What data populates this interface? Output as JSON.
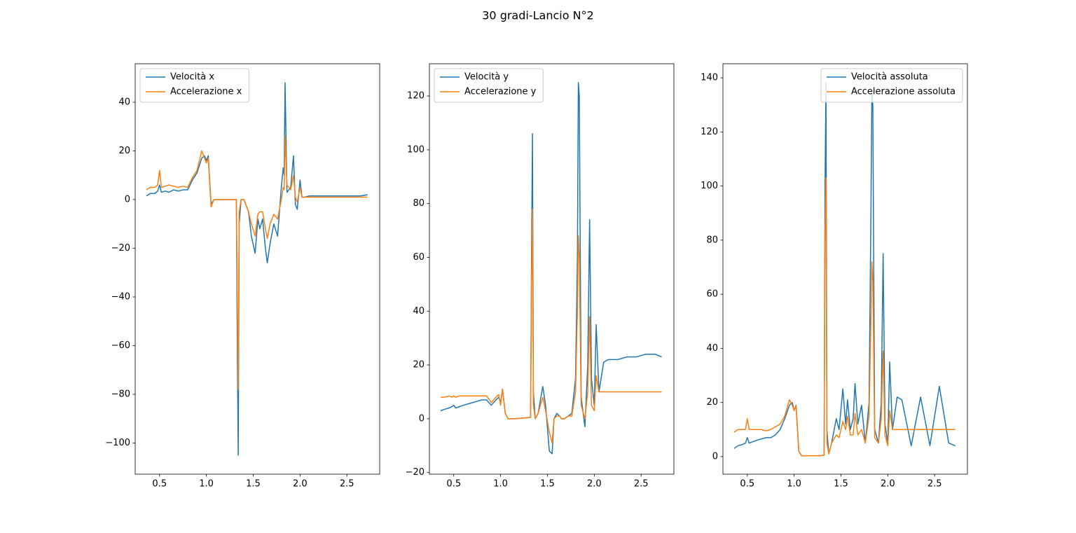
{
  "title": "30 gradi-Lancio N°2",
  "chart_data": [
    {
      "type": "line",
      "legend": "upper left",
      "x": [
        0.36,
        0.4,
        0.45,
        0.48,
        0.5,
        0.52,
        0.56,
        0.6,
        0.65,
        0.7,
        0.75,
        0.8,
        0.85,
        0.9,
        0.95,
        0.98,
        1.0,
        1.02,
        1.05,
        1.08,
        1.15,
        1.25,
        1.32,
        1.33,
        1.34,
        1.35,
        1.37,
        1.4,
        1.45,
        1.48,
        1.52,
        1.55,
        1.57,
        1.6,
        1.63,
        1.65,
        1.68,
        1.72,
        1.76,
        1.8,
        1.82,
        1.83,
        1.84,
        1.86,
        1.9,
        1.93,
        1.95,
        1.97,
        2.0,
        2.02,
        2.05,
        2.1,
        2.15,
        2.25,
        2.35,
        2.45,
        2.55,
        2.65,
        2.72
      ],
      "series": [
        {
          "name": "Velocità x",
          "color": "#1f77b4",
          "values": [
            1.5,
            2.5,
            2.5,
            3.5,
            6,
            3,
            3.5,
            3,
            4,
            3.5,
            4,
            4,
            8,
            11,
            17,
            18,
            16,
            18,
            -2,
            0,
            0,
            0,
            0,
            -60,
            -105,
            -10,
            0,
            0,
            -5,
            -15,
            -22,
            -8,
            -12,
            -8,
            -20,
            -26,
            -18,
            -10,
            -15,
            5,
            13,
            10,
            48,
            3,
            5,
            18,
            -2,
            -4,
            8,
            1,
            1,
            1.5,
            1.5,
            1.5,
            1.5,
            1.5,
            1.5,
            1.5,
            2
          ]
        },
        {
          "name": "Accelerazione x",
          "color": "#ff7f0e",
          "values": [
            4,
            5,
            5,
            6,
            12,
            5,
            5.5,
            6,
            5.5,
            5,
            5.5,
            5,
            9,
            12,
            20,
            17,
            15,
            17,
            -3,
            0,
            0,
            0,
            0,
            -40,
            -78,
            -5,
            0,
            0,
            -5,
            -10,
            -15,
            -6,
            -5,
            -5,
            -12,
            -16,
            -10,
            -6,
            -8,
            0,
            5,
            4,
            26,
            6,
            4,
            10,
            1,
            -1,
            5,
            1,
            1,
            1,
            1,
            1,
            1,
            1,
            1,
            1,
            1
          ]
        }
      ],
      "xlim": [
        0.24,
        2.85
      ],
      "xticks": [
        0.5,
        {
          "value": 1,
          "label": "1.0"
        },
        1.5,
        {
          "value": 2,
          "label": "2.0"
        },
        2.5
      ],
      "ylim": [
        -112.8,
        55.8
      ],
      "yticks": [
        {
          "value": -100,
          "label": "−100"
        },
        {
          "value": -80,
          "label": "−80"
        },
        {
          "value": -60,
          "label": "−60"
        },
        {
          "value": -40,
          "label": "−40"
        },
        {
          "value": -20,
          "label": "−20"
        },
        0,
        20,
        40
      ]
    },
    {
      "type": "line",
      "legend": "upper left",
      "x": [
        0.36,
        0.4,
        0.45,
        0.48,
        0.5,
        0.52,
        0.56,
        0.6,
        0.65,
        0.7,
        0.75,
        0.8,
        0.85,
        0.9,
        0.95,
        0.98,
        1.0,
        1.02,
        1.05,
        1.08,
        1.15,
        1.25,
        1.32,
        1.33,
        1.34,
        1.35,
        1.37,
        1.4,
        1.45,
        1.48,
        1.52,
        1.55,
        1.57,
        1.6,
        1.63,
        1.65,
        1.68,
        1.72,
        1.76,
        1.8,
        1.82,
        1.83,
        1.84,
        1.86,
        1.9,
        1.93,
        1.95,
        1.97,
        2.0,
        2.02,
        2.05,
        2.1,
        2.15,
        2.25,
        2.35,
        2.45,
        2.55,
        2.65,
        2.72
      ],
      "series": [
        {
          "name": "Velocità y",
          "color": "#1f77b4",
          "values": [
            3,
            3.5,
            4,
            4.5,
            5,
            4,
            4.5,
            5,
            5.5,
            6,
            6.5,
            7,
            7,
            5,
            7,
            8,
            6,
            11,
            2,
            0,
            0,
            0.3,
            0.5,
            60,
            106,
            10,
            0,
            2,
            12,
            5,
            -12,
            -13,
            0,
            2,
            1,
            0,
            0,
            1,
            2,
            15,
            60,
            125,
            120,
            8,
            -3,
            20,
            74,
            15,
            5,
            35,
            10,
            21,
            22,
            22,
            23,
            23,
            24,
            24,
            23
          ]
        },
        {
          "name": "Accelerazione y",
          "color": "#ff7f0e",
          "values": [
            8,
            8,
            8.5,
            8,
            8.5,
            8,
            8.5,
            8.5,
            8.5,
            8.5,
            8.5,
            8.5,
            8.5,
            6,
            8,
            9,
            5,
            11,
            2,
            0,
            0,
            0.3,
            0.5,
            50,
            78,
            5,
            0,
            2,
            8,
            3,
            -5,
            -9,
            0,
            1,
            1,
            0,
            0,
            1,
            1,
            10,
            40,
            68,
            60,
            5,
            0,
            10,
            38,
            5,
            3,
            16,
            10,
            10,
            10,
            10,
            10,
            10,
            10,
            10,
            10
          ]
        }
      ],
      "xlim": [
        0.24,
        2.85
      ],
      "xticks": [
        0.5,
        {
          "value": 1,
          "label": "1.0"
        },
        1.5,
        {
          "value": 2,
          "label": "2.0"
        },
        2.5
      ],
      "ylim": [
        -20.6,
        132
      ],
      "yticks": [
        {
          "value": -20,
          "label": "−20"
        },
        0,
        20,
        40,
        60,
        80,
        100,
        120
      ]
    },
    {
      "type": "line",
      "legend": "upper right",
      "x": [
        0.36,
        0.4,
        0.45,
        0.48,
        0.5,
        0.52,
        0.56,
        0.6,
        0.65,
        0.7,
        0.75,
        0.8,
        0.85,
        0.9,
        0.95,
        0.98,
        1.0,
        1.02,
        1.05,
        1.08,
        1.15,
        1.25,
        1.32,
        1.33,
        1.34,
        1.35,
        1.37,
        1.4,
        1.45,
        1.48,
        1.52,
        1.55,
        1.57,
        1.6,
        1.63,
        1.65,
        1.68,
        1.72,
        1.76,
        1.8,
        1.82,
        1.83,
        1.84,
        1.86,
        1.9,
        1.93,
        1.95,
        1.97,
        2.0,
        2.02,
        2.05,
        2.1,
        2.15,
        2.25,
        2.35,
        2.45,
        2.55,
        2.65,
        2.72
      ],
      "series": [
        {
          "name": "Velocità assoluta",
          "color": "#1f77b4",
          "values": [
            3,
            4,
            4.5,
            5,
            7,
            5,
            5.5,
            6,
            6.5,
            7,
            7,
            8,
            10,
            14,
            19,
            20,
            17,
            19,
            2,
            0.3,
            0.3,
            0.3,
            0.5,
            100,
            138,
            10,
            1,
            5,
            14,
            10,
            25,
            12,
            21,
            10,
            14,
            27,
            12,
            19,
            5,
            20,
            90,
            135,
            130,
            10,
            5,
            20,
            75,
            12,
            5,
            35,
            10,
            22,
            21,
            4,
            22,
            4,
            26,
            5,
            4
          ]
        },
        {
          "name": "Accelerazione assoluta",
          "color": "#ff7f0e",
          "values": [
            9,
            10,
            10,
            10,
            14,
            10,
            10,
            10,
            10,
            9.5,
            10,
            11,
            12,
            15,
            21,
            19,
            17,
            19,
            2,
            0.3,
            0.3,
            0.3,
            0.5,
            80,
            103,
            5,
            1,
            5,
            8,
            7,
            13,
            10,
            15,
            8,
            8,
            16,
            8,
            10,
            5,
            15,
            50,
            72,
            65,
            7,
            5,
            14,
            39,
            8,
            4,
            17,
            10,
            10,
            10,
            10,
            10,
            10,
            10,
            10,
            10
          ]
        }
      ],
      "xlim": [
        0.24,
        2.85
      ],
      "xticks": [
        0.5,
        {
          "value": 1,
          "label": "1.0"
        },
        1.5,
        {
          "value": 2,
          "label": "2.0"
        },
        2.5
      ],
      "ylim": [
        -6.5,
        145.2
      ],
      "yticks": [
        0,
        20,
        40,
        60,
        80,
        100,
        120,
        140
      ]
    }
  ]
}
